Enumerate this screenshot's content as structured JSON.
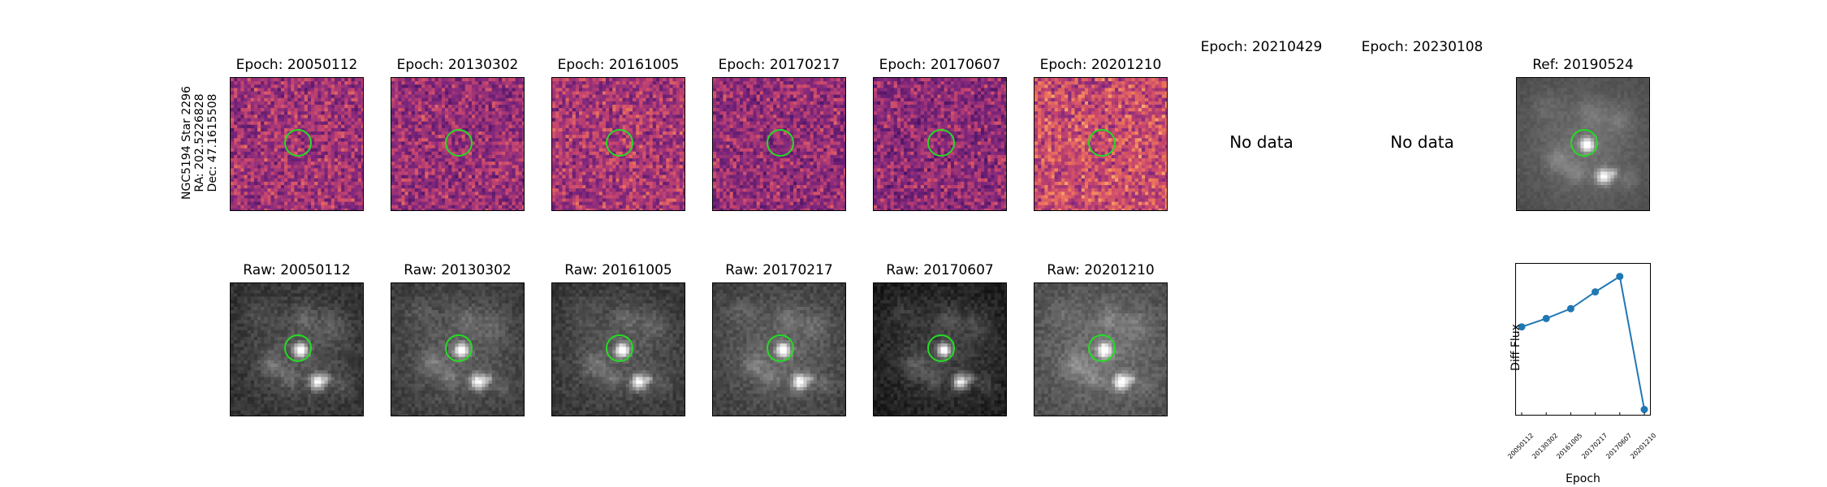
{
  "star_label": {
    "name": "NGC5194 Star 2296",
    "ra": "RA: 202.5226828",
    "dec": "Dec: 47.1615508"
  },
  "diff_row": [
    {
      "title": "Epoch: 20050112",
      "has_data": true,
      "seed": 11,
      "bright": 0.45
    },
    {
      "title": "Epoch: 20130302",
      "has_data": true,
      "seed": 23,
      "bright": 0.42
    },
    {
      "title": "Epoch: 20161005",
      "has_data": true,
      "seed": 37,
      "bright": 0.48
    },
    {
      "title": "Epoch: 20170217",
      "has_data": true,
      "seed": 41,
      "bright": 0.4
    },
    {
      "title": "Epoch: 20170607",
      "has_data": true,
      "seed": 53,
      "bright": 0.38
    },
    {
      "title": "Epoch: 20201210",
      "has_data": true,
      "seed": 67,
      "bright": 0.62
    },
    {
      "title": "Epoch: 20210429",
      "has_data": false,
      "nodata": "No data"
    },
    {
      "title": "Epoch: 20230108",
      "has_data": false,
      "nodata": "No data"
    }
  ],
  "ref": {
    "title": "Ref: 20190524"
  },
  "raw_row": [
    {
      "title": "Raw: 20050112",
      "seed": 3,
      "bg": 0.18
    },
    {
      "title": "Raw: 20130302",
      "seed": 5,
      "bg": 0.22
    },
    {
      "title": "Raw: 20161005",
      "seed": 7,
      "bg": 0.2
    },
    {
      "title": "Raw: 20170217",
      "seed": 9,
      "bg": 0.24
    },
    {
      "title": "Raw: 20170607",
      "seed": 13,
      "bg": 0.1
    },
    {
      "title": "Raw: 20201210",
      "seed": 17,
      "bg": 0.3
    }
  ],
  "colors": {
    "aperture": "#22dd22",
    "line": "#1f77b4"
  },
  "chart_data": {
    "type": "line",
    "x": [
      "20050112",
      "20130302",
      "20161005",
      "20170217",
      "20170607",
      "20201210"
    ],
    "values": [
      0.59,
      0.65,
      0.72,
      0.84,
      0.95,
      0.0
    ],
    "ylabel": "Diff Flux",
    "xlabel": "Epoch",
    "ylim": [
      -0.02,
      1.0
    ],
    "grid": false
  }
}
